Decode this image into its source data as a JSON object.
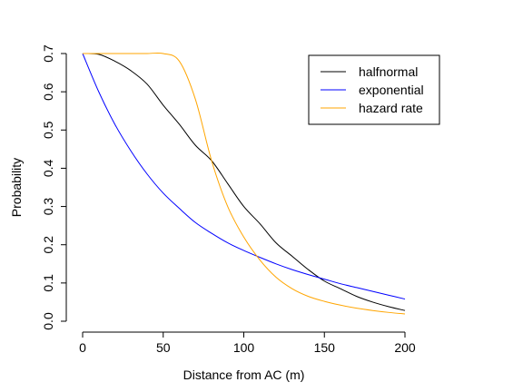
{
  "chart_data": {
    "type": "line",
    "title": "",
    "xlabel": "Distance from AC (m)",
    "ylabel": "Probability",
    "xlim": [
      0,
      200
    ],
    "ylim": [
      0,
      0.7
    ],
    "grid": false,
    "legend_position": "top-right",
    "x_ticks": [
      "0",
      "50",
      "100",
      "150",
      "200"
    ],
    "y_ticks": [
      "0.0",
      "0.1",
      "0.2",
      "0.3",
      "0.4",
      "0.5",
      "0.6",
      "0.7"
    ],
    "x": [
      0,
      10,
      20,
      30,
      40,
      50,
      60,
      70,
      80,
      90,
      100,
      110,
      120,
      130,
      140,
      150,
      160,
      170,
      180,
      190,
      200
    ],
    "series": [
      {
        "name": "halfnormal",
        "color": "#000000",
        "values": [
          0.7,
          0.698,
          0.68,
          0.655,
          0.62,
          0.565,
          0.515,
          0.46,
          0.42,
          0.36,
          0.3,
          0.255,
          0.205,
          0.17,
          0.135,
          0.105,
          0.085,
          0.065,
          0.05,
          0.038,
          0.028
        ]
      },
      {
        "name": "exponential",
        "color": "#0000ff",
        "values": [
          0.7,
          0.6,
          0.515,
          0.445,
          0.385,
          0.335,
          0.295,
          0.258,
          0.23,
          0.205,
          0.185,
          0.167,
          0.15,
          0.135,
          0.122,
          0.11,
          0.098,
          0.088,
          0.078,
          0.068,
          0.058
        ]
      },
      {
        "name": "hazard rate",
        "color": "#ffa500",
        "values": [
          0.7,
          0.7,
          0.7,
          0.7,
          0.7,
          0.7,
          0.68,
          0.58,
          0.42,
          0.3,
          0.22,
          0.16,
          0.115,
          0.085,
          0.065,
          0.052,
          0.042,
          0.034,
          0.028,
          0.023,
          0.019
        ]
      }
    ]
  }
}
